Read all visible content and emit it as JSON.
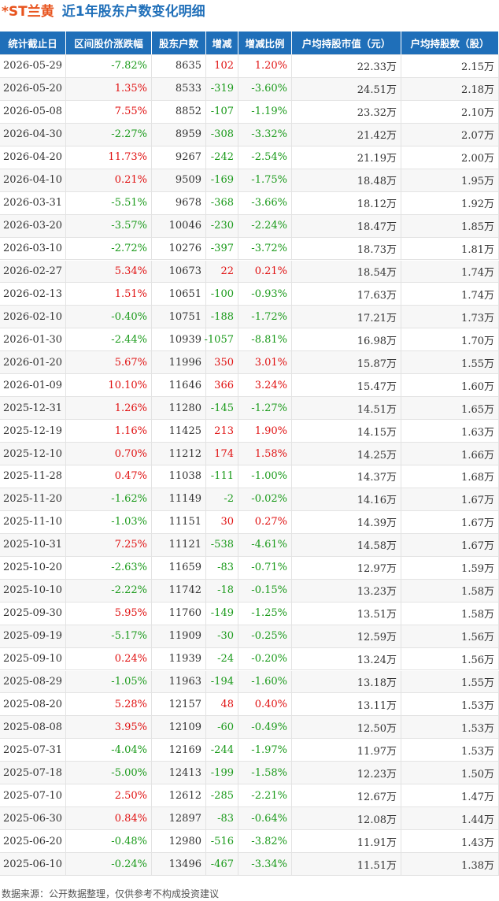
{
  "header": {
    "ticker": "*ST兰黄",
    "title": "近1年股东户数变化明细"
  },
  "table": {
    "columns": [
      "统计截止日",
      "区间股价涨跌幅",
      "股东户数",
      "增减",
      "增减比例",
      "户均持股市值（元）",
      "户均持股数（股）"
    ],
    "rows": [
      [
        "2026-05-29",
        "-7.82%",
        "8635",
        "102",
        "1.20%",
        "22.33万",
        "2.15万"
      ],
      [
        "2026-05-20",
        "1.35%",
        "8533",
        "-319",
        "-3.60%",
        "24.51万",
        "2.18万"
      ],
      [
        "2026-05-08",
        "7.55%",
        "8852",
        "-107",
        "-1.19%",
        "23.32万",
        "2.10万"
      ],
      [
        "2026-04-30",
        "-2.27%",
        "8959",
        "-308",
        "-3.32%",
        "21.42万",
        "2.07万"
      ],
      [
        "2026-04-20",
        "11.73%",
        "9267",
        "-242",
        "-2.54%",
        "21.19万",
        "2.00万"
      ],
      [
        "2026-04-10",
        "0.21%",
        "9509",
        "-169",
        "-1.75%",
        "18.48万",
        "1.95万"
      ],
      [
        "2026-03-31",
        "-5.51%",
        "9678",
        "-368",
        "-3.66%",
        "18.12万",
        "1.92万"
      ],
      [
        "2026-03-20",
        "-3.57%",
        "10046",
        "-230",
        "-2.24%",
        "18.47万",
        "1.85万"
      ],
      [
        "2026-03-10",
        "-2.72%",
        "10276",
        "-397",
        "-3.72%",
        "18.73万",
        "1.81万"
      ],
      [
        "2026-02-27",
        "5.34%",
        "10673",
        "22",
        "0.21%",
        "18.54万",
        "1.74万"
      ],
      [
        "2026-02-13",
        "1.51%",
        "10651",
        "-100",
        "-0.93%",
        "17.63万",
        "1.74万"
      ],
      [
        "2026-02-10",
        "-0.40%",
        "10751",
        "-188",
        "-1.72%",
        "17.21万",
        "1.73万"
      ],
      [
        "2026-01-30",
        "-2.44%",
        "10939",
        "-1057",
        "-8.81%",
        "16.98万",
        "1.70万"
      ],
      [
        "2026-01-20",
        "5.67%",
        "11996",
        "350",
        "3.01%",
        "15.87万",
        "1.55万"
      ],
      [
        "2026-01-09",
        "10.10%",
        "11646",
        "366",
        "3.24%",
        "15.47万",
        "1.60万"
      ],
      [
        "2025-12-31",
        "1.26%",
        "11280",
        "-145",
        "-1.27%",
        "14.51万",
        "1.65万"
      ],
      [
        "2025-12-19",
        "1.16%",
        "11425",
        "213",
        "1.90%",
        "14.15万",
        "1.63万"
      ],
      [
        "2025-12-10",
        "0.70%",
        "11212",
        "174",
        "1.58%",
        "14.25万",
        "1.66万"
      ],
      [
        "2025-11-28",
        "0.47%",
        "11038",
        "-111",
        "-1.00%",
        "14.37万",
        "1.68万"
      ],
      [
        "2025-11-20",
        "-1.62%",
        "11149",
        "-2",
        "-0.02%",
        "14.16万",
        "1.67万"
      ],
      [
        "2025-11-10",
        "-1.03%",
        "11151",
        "30",
        "0.27%",
        "14.39万",
        "1.67万"
      ],
      [
        "2025-10-31",
        "7.25%",
        "11121",
        "-538",
        "-4.61%",
        "14.58万",
        "1.67万"
      ],
      [
        "2025-10-20",
        "-2.63%",
        "11659",
        "-83",
        "-0.71%",
        "12.97万",
        "1.59万"
      ],
      [
        "2025-10-10",
        "-2.22%",
        "11742",
        "-18",
        "-0.15%",
        "13.23万",
        "1.58万"
      ],
      [
        "2025-09-30",
        "5.95%",
        "11760",
        "-149",
        "-1.25%",
        "13.51万",
        "1.58万"
      ],
      [
        "2025-09-19",
        "-5.17%",
        "11909",
        "-30",
        "-0.25%",
        "12.59万",
        "1.56万"
      ],
      [
        "2025-09-10",
        "0.24%",
        "11939",
        "-24",
        "-0.20%",
        "13.24万",
        "1.56万"
      ],
      [
        "2025-08-29",
        "-1.05%",
        "11963",
        "-194",
        "-1.60%",
        "13.18万",
        "1.55万"
      ],
      [
        "2025-08-20",
        "5.28%",
        "12157",
        "48",
        "0.40%",
        "13.11万",
        "1.53万"
      ],
      [
        "2025-08-08",
        "3.95%",
        "12109",
        "-60",
        "-0.49%",
        "12.50万",
        "1.53万"
      ],
      [
        "2025-07-31",
        "-4.04%",
        "12169",
        "-244",
        "-1.97%",
        "11.97万",
        "1.53万"
      ],
      [
        "2025-07-18",
        "-5.00%",
        "12413",
        "-199",
        "-1.58%",
        "12.23万",
        "1.50万"
      ],
      [
        "2025-07-10",
        "2.50%",
        "12612",
        "-285",
        "-2.21%",
        "12.67万",
        "1.47万"
      ],
      [
        "2025-06-30",
        "0.84%",
        "12897",
        "-83",
        "-0.64%",
        "12.08万",
        "1.44万"
      ],
      [
        "2025-06-20",
        "-0.48%",
        "12980",
        "-516",
        "-3.82%",
        "11.91万",
        "1.43万"
      ],
      [
        "2025-06-10",
        "-0.24%",
        "13496",
        "-467",
        "-3.34%",
        "11.51万",
        "1.38万"
      ]
    ]
  },
  "footer": {
    "source": "数据来源：公开数据整理，仅供参考不构成投资建议"
  }
}
